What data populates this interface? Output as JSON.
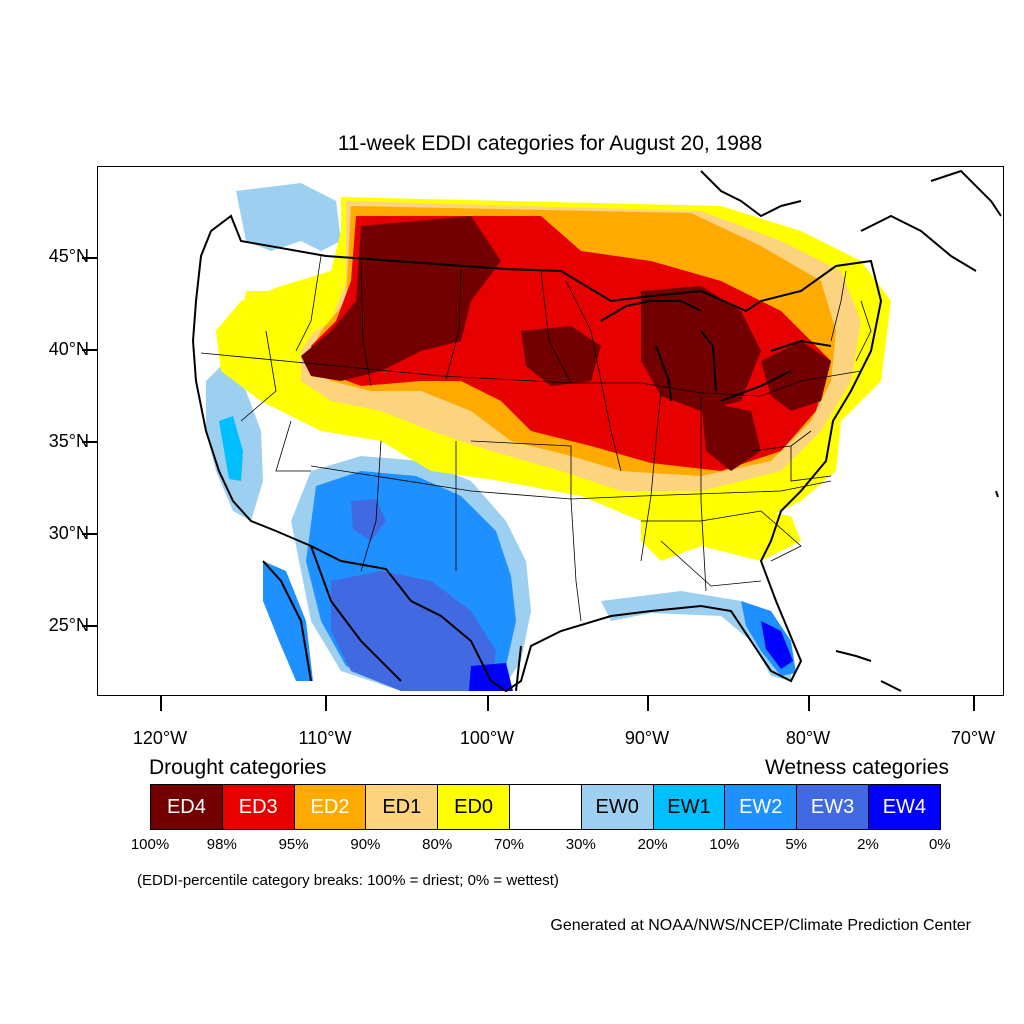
{
  "title": "11-week EDDI categories for August 20, 1988",
  "map": {
    "lat_labels": [
      "45°N",
      "40°N",
      "35°N",
      "30°N",
      "25°N"
    ],
    "lon_labels": [
      "120°W",
      "110°W",
      "100°W",
      "90°W",
      "80°W",
      "70°W"
    ]
  },
  "legend": {
    "drought_heading": "Drought categories",
    "wetness_heading": "Wetness categories",
    "categories": [
      {
        "label": "ED4",
        "color": "#730000",
        "text_color": "#ffffff"
      },
      {
        "label": "ED3",
        "color": "#e60000",
        "text_color": "#ffffff"
      },
      {
        "label": "ED2",
        "color": "#ffaa00",
        "text_color": "#ffffff"
      },
      {
        "label": "ED1",
        "color": "#fcd37f",
        "text_color": "#000000"
      },
      {
        "label": "ED0",
        "color": "#ffff00",
        "text_color": "#000000"
      },
      {
        "label": "",
        "color": "#ffffff",
        "text_color": "#000000"
      },
      {
        "label": "EW0",
        "color": "#9dd0f0",
        "text_color": "#000000"
      },
      {
        "label": "EW1",
        "color": "#00bfff",
        "text_color": "#000000"
      },
      {
        "label": "EW2",
        "color": "#1e90ff",
        "text_color": "#ffffff"
      },
      {
        "label": "EW3",
        "color": "#4169e1",
        "text_color": "#ffffff"
      },
      {
        "label": "EW4",
        "color": "#0000ff",
        "text_color": "#ffffff"
      }
    ],
    "percentiles": [
      "100%",
      "98%",
      "95%",
      "90%",
      "80%",
      "70%",
      "30%",
      "20%",
      "10%",
      "5%",
      "2%",
      "0%"
    ]
  },
  "note": "(EDDI-percentile category breaks: 100% = driest; 0% = wettest)",
  "credit": "Generated at NOAA/NWS/NCEP/Climate Prediction Center"
}
